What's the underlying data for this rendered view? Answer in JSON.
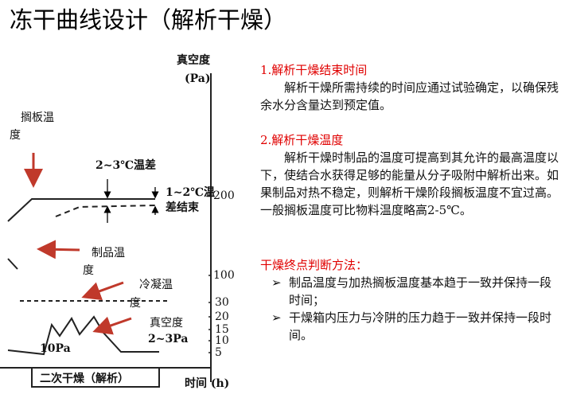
{
  "header": {
    "title": "冻干曲线设计（解析干燥）"
  },
  "diagram": {
    "y_axis_title": "真空度",
    "y_axis_unit": "(Pa)",
    "y_ticks": [
      "200",
      "100",
      "30",
      "20",
      "15",
      "10",
      "5"
    ],
    "x_axis_label": "时间 (h)",
    "phase_label": "二次干燥（解析）",
    "shelf_temp_label": [
      "搁板温",
      "度"
    ],
    "temp_diff_label": "2~3℃温差",
    "end_diff_label": [
      "1~2℃温",
      "差结束"
    ],
    "product_temp_label": [
      "制品温",
      "度"
    ],
    "condenser_temp_label": [
      "冷凝温",
      "度"
    ],
    "vacuum_label": [
      "真空度",
      "2~3Pa"
    ],
    "pressure_low_label": "10Pa"
  },
  "sections": [
    {
      "heading": "1.解析干燥结束时间",
      "text": "解析干燥所需持续的时间应通过试验确定，以确保残余水分含量达到预定值。"
    },
    {
      "heading": "2.解析干燥温度",
      "text": "解析干燥时制品的温度可提高到其允许的最高温度以下，使结合水获得足够的能量从分子吸附中解析出来。如果制品对热不稳定，则解析干燥阶段搁板温度不宜过高。一般搁板温度可比物料温度略高2-5℃。"
    },
    {
      "heading": "干燥终点判断方法：",
      "bullets": [
        "制品温度与加热搁板温度基本趋于一致并保持一段时间；",
        "干燥箱内压力与冷阱的压力趋于一致并保持一段时间。"
      ]
    }
  ]
}
